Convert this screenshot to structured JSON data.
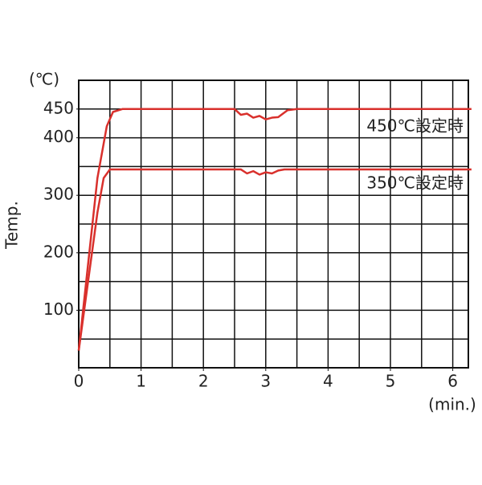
{
  "chart_data": {
    "type": "line",
    "y_unit": "(℃)",
    "y_label": "Temp.",
    "x_unit": "(min.)",
    "annotations": [
      "450℃設定時",
      "350℃設定時"
    ],
    "xlim": [
      0,
      6.25
    ],
    "ylim": [
      0,
      500
    ],
    "xticks": [
      0,
      1,
      2,
      3,
      4,
      5,
      6
    ],
    "yticks": [
      100,
      200,
      300,
      400,
      450
    ],
    "xgrid": [
      0.5,
      1,
      1.5,
      2,
      2.5,
      3,
      3.5,
      4,
      4.5,
      5,
      5.5,
      6
    ],
    "ygrid": [
      50,
      100,
      150,
      200,
      250,
      300,
      350,
      400,
      450
    ],
    "grid": true,
    "series": [
      {
        "name": "450",
        "color": "#d9302c",
        "x": [
          0,
          0.1,
          0.2,
          0.3,
          0.45,
          0.55,
          0.7,
          2.5,
          2.6,
          2.7,
          2.8,
          2.9,
          3.0,
          3.1,
          3.2,
          3.35,
          3.5,
          6.3
        ],
        "values": [
          30,
          130,
          230,
          330,
          420,
          445,
          450,
          450,
          440,
          442,
          435,
          438,
          432,
          435,
          436,
          448,
          450,
          450
        ]
      },
      {
        "name": "350",
        "color": "#d9302c",
        "x": [
          0,
          0.1,
          0.2,
          0.3,
          0.4,
          0.5,
          2.6,
          2.7,
          2.8,
          2.9,
          3.0,
          3.1,
          3.2,
          3.3,
          6.3
        ],
        "values": [
          30,
          110,
          190,
          270,
          330,
          345,
          345,
          338,
          342,
          336,
          340,
          338,
          343,
          345,
          345
        ]
      }
    ]
  }
}
